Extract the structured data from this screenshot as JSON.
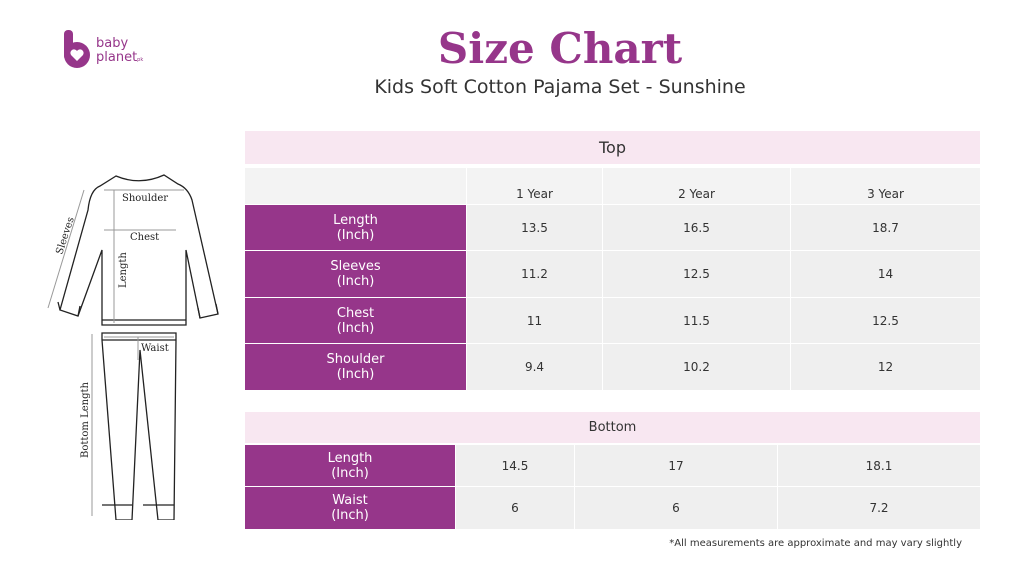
{
  "brand": {
    "name_line1": "baby",
    "name_line2": "planet",
    "suffix": "pk",
    "color": "#96368a"
  },
  "header": {
    "title": "Size Chart",
    "subtitle": "Kids Soft Cotton Pajama Set - Sunshine"
  },
  "illustration": {
    "labels": {
      "shoulder": "Shoulder",
      "chest": "Chest",
      "sleeves": "Sleeves",
      "length": "Length",
      "waist": "Waist",
      "bottom_length": "Bottom Length"
    }
  },
  "top_table": {
    "title": "Top",
    "columns": [
      "1 Year",
      "2 Year",
      "3 Year"
    ],
    "rows": [
      {
        "label": "Length",
        "unit": "(Inch)",
        "values": [
          "13.5",
          "16.5",
          "18.7"
        ]
      },
      {
        "label": "Sleeves",
        "unit": "(Inch)",
        "values": [
          "11.2",
          "12.5",
          "14"
        ]
      },
      {
        "label": "Chest",
        "unit": "(Inch)",
        "values": [
          "11",
          "11.5",
          "12.5"
        ]
      },
      {
        "label": "Shoulder",
        "unit": "(Inch)",
        "values": [
          "9.4",
          "10.2",
          "12"
        ]
      }
    ]
  },
  "bottom_table": {
    "title": "Bottom",
    "rows": [
      {
        "label": "Length",
        "unit": "(Inch)",
        "values": [
          "14.5",
          "17",
          "18.1"
        ]
      },
      {
        "label": "Waist",
        "unit": "(Inch)",
        "values": [
          "6",
          "6",
          "7.2"
        ]
      }
    ]
  },
  "footnote": "*All measurements are approximate and may vary slightly",
  "colors": {
    "accent": "#96368a",
    "band": "#f8e7f1",
    "cell": "#efefef"
  }
}
